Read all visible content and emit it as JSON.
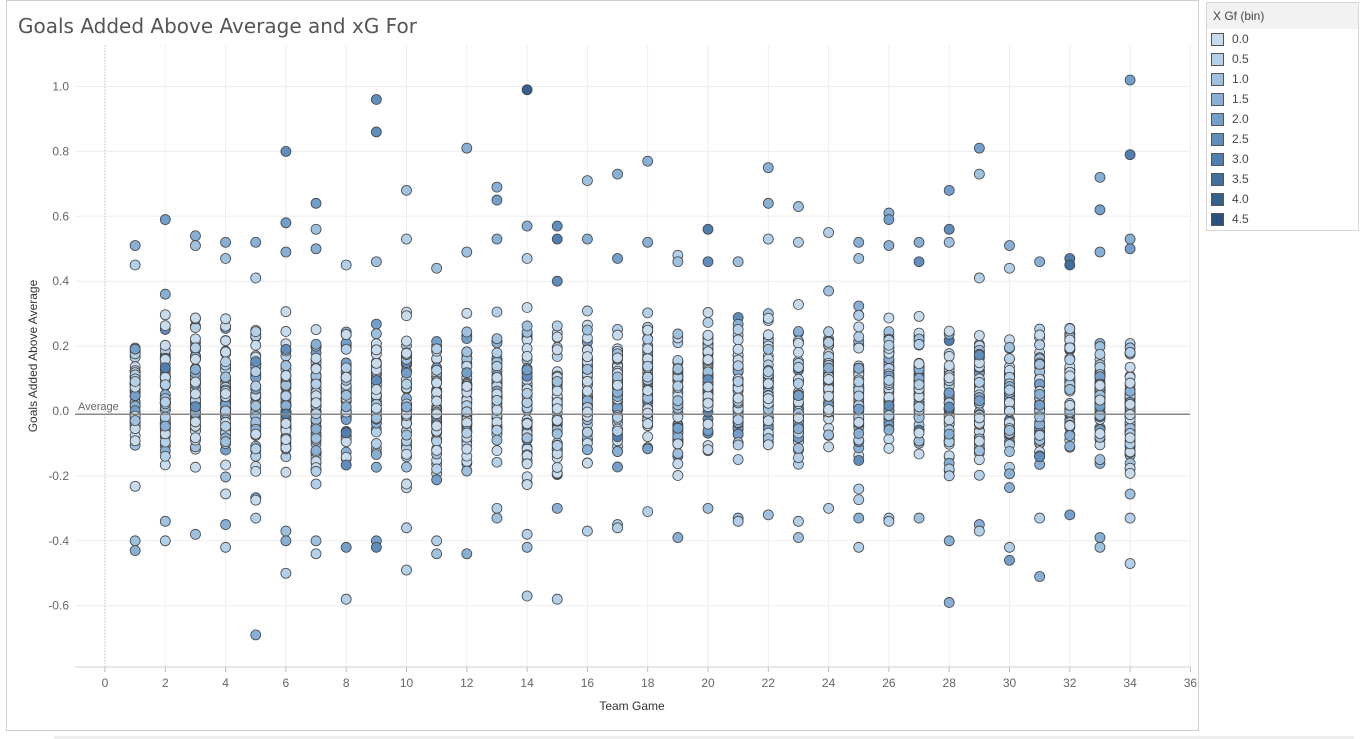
{
  "colors": {
    "dot_stroke": "#444444",
    "gridline": "#eeeeee",
    "reference_line": "#888888",
    "text": "#555555"
  },
  "chart_data": {
    "type": "scatter",
    "title": "Goals Added Above Average and xG For",
    "xlabel": "Team Game",
    "ylabel": "Goals Added Above Average",
    "xlim": [
      -1,
      36
    ],
    "ylim": [
      -0.78,
      1.1
    ],
    "x_ticks": [
      0,
      2,
      4,
      6,
      8,
      10,
      12,
      14,
      16,
      18,
      20,
      22,
      24,
      26,
      28,
      30,
      32,
      34,
      36
    ],
    "y_ticks": [
      -0.6,
      -0.4,
      -0.2,
      0.0,
      0.2,
      0.4,
      0.6,
      0.8,
      1.0
    ],
    "x_tick_labels": [
      "0",
      "2",
      "4",
      "6",
      "8",
      "10",
      "12",
      "14",
      "16",
      "18",
      "20",
      "22",
      "24",
      "26",
      "28",
      "30",
      "32",
      "34",
      "36"
    ],
    "y_tick_labels": [
      "-0.6",
      "-0.4",
      "-0.2",
      "0.0",
      "0.2",
      "0.4",
      "0.6",
      "0.8",
      "1.0"
    ],
    "reference_line": {
      "label": "Average",
      "value": -0.01
    },
    "color_legend": {
      "title": "X Gf (bin)",
      "bins": [
        {
          "label": "0.0",
          "value": 0.0,
          "color": "#c6dcee"
        },
        {
          "label": "0.5",
          "value": 0.5,
          "color": "#b3d0ea"
        },
        {
          "label": "1.0",
          "value": 1.0,
          "color": "#9ec1e0"
        },
        {
          "label": "1.5",
          "value": 1.5,
          "color": "#88b0d6"
        },
        {
          "label": "2.0",
          "value": 2.0,
          "color": "#729fcb"
        },
        {
          "label": "2.5",
          "value": 2.5,
          "color": "#5f8ebe"
        },
        {
          "label": "3.0",
          "value": 3.0,
          "color": "#4f7fb0"
        },
        {
          "label": "3.5",
          "value": 3.5,
          "color": "#41709f"
        },
        {
          "label": "4.0",
          "value": 4.0,
          "color": "#35618e"
        },
        {
          "label": "4.5",
          "value": 4.5,
          "color": "#2b527c"
        }
      ]
    },
    "games": [
      {
        "game": 1,
        "min": -0.43,
        "max": 0.51,
        "extremes": [
          [
            0.51,
            3
          ],
          [
            0.45,
            1
          ],
          [
            -0.4,
            2
          ],
          [
            -0.43,
            3
          ]
        ]
      },
      {
        "game": 2,
        "min": -0.4,
        "max": 0.59,
        "extremes": [
          [
            0.59,
            4
          ],
          [
            0.36,
            3
          ],
          [
            -0.34,
            2
          ],
          [
            -0.4,
            1
          ]
        ]
      },
      {
        "game": 3,
        "min": -0.38,
        "max": 0.54,
        "extremes": [
          [
            0.54,
            3
          ],
          [
            0.51,
            2
          ],
          [
            -0.38,
            2
          ]
        ]
      },
      {
        "game": 4,
        "min": -0.42,
        "max": 0.52,
        "extremes": [
          [
            0.52,
            3
          ],
          [
            0.47,
            2
          ],
          [
            -0.35,
            3
          ],
          [
            -0.42,
            1
          ]
        ]
      },
      {
        "game": 5,
        "min": -0.69,
        "max": 0.52,
        "extremes": [
          [
            0.52,
            3
          ],
          [
            0.41,
            1
          ],
          [
            -0.33,
            1
          ],
          [
            -0.69,
            3
          ]
        ]
      },
      {
        "game": 6,
        "min": -0.5,
        "max": 0.8,
        "extremes": [
          [
            0.8,
            5
          ],
          [
            0.58,
            4
          ],
          [
            0.49,
            3
          ],
          [
            -0.37,
            2
          ],
          [
            -0.4,
            3
          ],
          [
            -0.5,
            1
          ]
        ]
      },
      {
        "game": 7,
        "min": -0.44,
        "max": 0.64,
        "extremes": [
          [
            0.64,
            4
          ],
          [
            0.56,
            2
          ],
          [
            0.5,
            3
          ],
          [
            -0.4,
            2
          ],
          [
            -0.44,
            1
          ]
        ]
      },
      {
        "game": 8,
        "min": -0.58,
        "max": 0.45,
        "extremes": [
          [
            0.45,
            1
          ],
          [
            -0.42,
            4
          ],
          [
            -0.58,
            1
          ]
        ]
      },
      {
        "game": 9,
        "min": -0.42,
        "max": 0.96,
        "extremes": [
          [
            0.96,
            5
          ],
          [
            0.86,
            5
          ],
          [
            0.46,
            2
          ],
          [
            -0.4,
            4
          ],
          [
            -0.42,
            5
          ]
        ]
      },
      {
        "game": 10,
        "min": -0.49,
        "max": 0.68,
        "extremes": [
          [
            0.68,
            2
          ],
          [
            0.53,
            1
          ],
          [
            -0.36,
            1
          ],
          [
            -0.49,
            1
          ]
        ]
      },
      {
        "game": 11,
        "min": -0.44,
        "max": 0.44,
        "extremes": [
          [
            0.44,
            2
          ],
          [
            -0.4,
            1
          ],
          [
            -0.44,
            2
          ]
        ]
      },
      {
        "game": 12,
        "min": -0.44,
        "max": 0.81,
        "extremes": [
          [
            0.81,
            3
          ],
          [
            0.49,
            2
          ],
          [
            -0.44,
            3
          ]
        ]
      },
      {
        "game": 13,
        "min": -0.33,
        "max": 0.69,
        "extremes": [
          [
            0.69,
            3
          ],
          [
            0.65,
            4
          ],
          [
            0.53,
            3
          ],
          [
            -0.3,
            1
          ],
          [
            -0.33,
            2
          ]
        ]
      },
      {
        "game": 14,
        "min": -0.57,
        "max": 0.99,
        "extremes": [
          [
            0.99,
            8
          ],
          [
            0.57,
            3
          ],
          [
            0.47,
            1
          ],
          [
            -0.38,
            1
          ],
          [
            -0.42,
            2
          ],
          [
            -0.57,
            1
          ]
        ]
      },
      {
        "game": 15,
        "min": -0.58,
        "max": 0.57,
        "extremes": [
          [
            0.57,
            5
          ],
          [
            0.53,
            6
          ],
          [
            0.4,
            5
          ],
          [
            -0.3,
            3
          ],
          [
            -0.58,
            1
          ]
        ]
      },
      {
        "game": 16,
        "min": -0.37,
        "max": 0.71,
        "extremes": [
          [
            0.71,
            2
          ],
          [
            0.53,
            3
          ],
          [
            -0.37,
            1
          ]
        ]
      },
      {
        "game": 17,
        "min": -0.36,
        "max": 0.73,
        "extremes": [
          [
            0.73,
            3
          ],
          [
            0.47,
            4
          ],
          [
            -0.35,
            1
          ],
          [
            -0.36,
            1
          ]
        ]
      },
      {
        "game": 18,
        "min": -0.31,
        "max": 0.77,
        "extremes": [
          [
            0.77,
            3
          ],
          [
            0.52,
            3
          ],
          [
            -0.31,
            1
          ]
        ]
      },
      {
        "game": 19,
        "min": -0.39,
        "max": 0.48,
        "extremes": [
          [
            0.48,
            1
          ],
          [
            0.46,
            2
          ],
          [
            -0.39,
            3
          ]
        ]
      },
      {
        "game": 20,
        "min": -0.3,
        "max": 0.56,
        "extremes": [
          [
            0.56,
            6
          ],
          [
            0.46,
            5
          ],
          [
            -0.3,
            2
          ]
        ]
      },
      {
        "game": 21,
        "min": -0.34,
        "max": 0.46,
        "extremes": [
          [
            0.46,
            2
          ],
          [
            -0.33,
            2
          ],
          [
            -0.34,
            1
          ]
        ]
      },
      {
        "game": 22,
        "min": -0.32,
        "max": 0.75,
        "extremes": [
          [
            0.75,
            3
          ],
          [
            0.64,
            3
          ],
          [
            0.53,
            1
          ],
          [
            -0.32,
            2
          ]
        ]
      },
      {
        "game": 23,
        "min": -0.39,
        "max": 0.63,
        "extremes": [
          [
            0.63,
            2
          ],
          [
            0.52,
            1
          ],
          [
            -0.34,
            1
          ],
          [
            -0.39,
            2
          ]
        ]
      },
      {
        "game": 24,
        "min": -0.3,
        "max": 0.55,
        "extremes": [
          [
            0.55,
            1
          ],
          [
            0.37,
            2
          ],
          [
            -0.3,
            1
          ]
        ]
      },
      {
        "game": 25,
        "min": -0.42,
        "max": 0.52,
        "extremes": [
          [
            0.52,
            3
          ],
          [
            0.47,
            2
          ],
          [
            -0.33,
            3
          ],
          [
            -0.42,
            1
          ]
        ]
      },
      {
        "game": 26,
        "min": -0.34,
        "max": 0.61,
        "extremes": [
          [
            0.61,
            3
          ],
          [
            0.59,
            4
          ],
          [
            0.51,
            3
          ],
          [
            -0.33,
            1
          ],
          [
            -0.34,
            1
          ]
        ]
      },
      {
        "game": 27,
        "min": -0.33,
        "max": 0.52,
        "extremes": [
          [
            0.52,
            3
          ],
          [
            0.46,
            5
          ],
          [
            -0.33,
            2
          ]
        ]
      },
      {
        "game": 28,
        "min": -0.59,
        "max": 0.68,
        "extremes": [
          [
            0.68,
            4
          ],
          [
            0.56,
            5
          ],
          [
            0.52,
            2
          ],
          [
            -0.4,
            3
          ],
          [
            -0.59,
            3
          ]
        ]
      },
      {
        "game": 29,
        "min": -0.37,
        "max": 0.81,
        "extremes": [
          [
            0.81,
            4
          ],
          [
            0.73,
            2
          ],
          [
            0.41,
            1
          ],
          [
            -0.35,
            3
          ],
          [
            -0.37,
            1
          ]
        ]
      },
      {
        "game": 30,
        "min": -0.46,
        "max": 0.51,
        "extremes": [
          [
            0.51,
            3
          ],
          [
            0.44,
            1
          ],
          [
            -0.42,
            1
          ],
          [
            -0.46,
            4
          ]
        ]
      },
      {
        "game": 31,
        "min": -0.51,
        "max": 0.46,
        "extremes": [
          [
            0.46,
            3
          ],
          [
            -0.33,
            1
          ],
          [
            -0.51,
            3
          ]
        ]
      },
      {
        "game": 32,
        "min": -0.32,
        "max": 0.47,
        "extremes": [
          [
            0.47,
            6
          ],
          [
            0.45,
            7
          ],
          [
            -0.32,
            4
          ]
        ]
      },
      {
        "game": 33,
        "min": -0.42,
        "max": 0.72,
        "extremes": [
          [
            0.72,
            3
          ],
          [
            0.62,
            4
          ],
          [
            0.49,
            3
          ],
          [
            -0.39,
            3
          ],
          [
            -0.42,
            2
          ]
        ]
      },
      {
        "game": 34,
        "min": -0.47,
        "max": 1.02,
        "extremes": [
          [
            1.02,
            4
          ],
          [
            0.79,
            6
          ],
          [
            0.53,
            3
          ],
          [
            0.5,
            4
          ],
          [
            -0.33,
            1
          ],
          [
            -0.47,
            1
          ]
        ]
      }
    ]
  }
}
